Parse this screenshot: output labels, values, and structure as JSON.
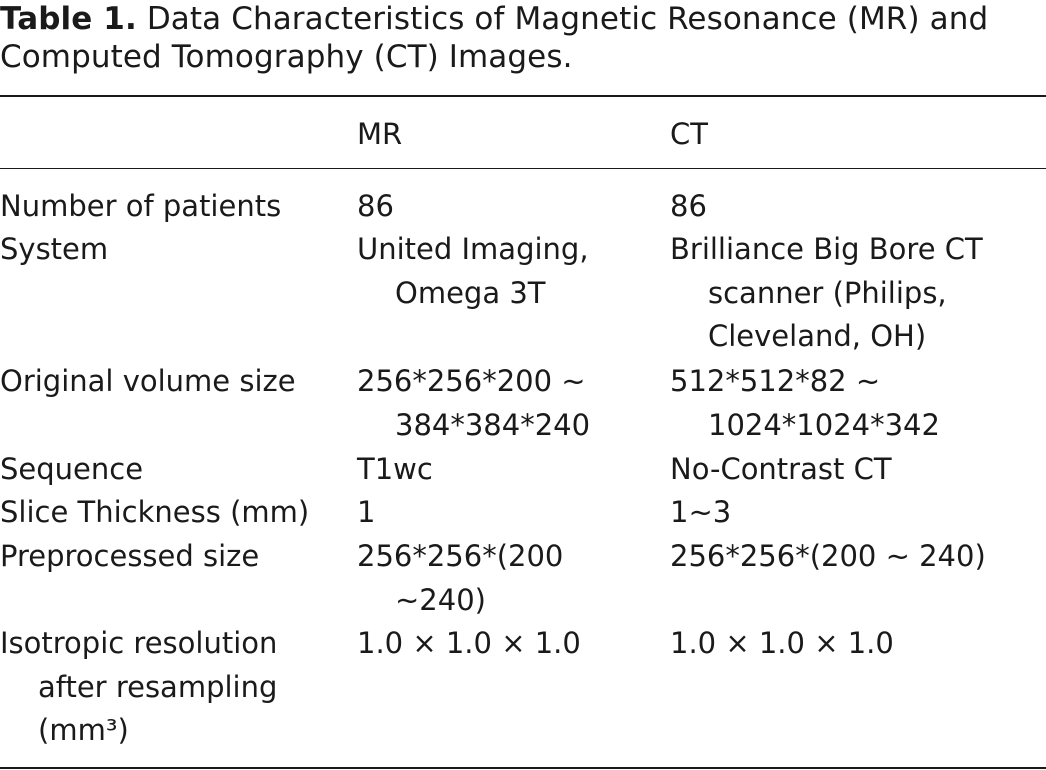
{
  "caption": {
    "label": "Table 1.",
    "text": "Data Characteristics of Magnetic Resonance (MR) and Computed Tomography (CT) Images."
  },
  "header": [
    "",
    "MR",
    "CT"
  ],
  "rows": [
    [
      "Number of patients",
      "86",
      "86"
    ],
    [
      "System",
      "United Imaging, Omega 3T",
      "Brilliance Big Bore CT scanner (Philips, Cleveland, OH)"
    ],
    [
      "Original volume size",
      "256*256*200 ∼ 384*384*240",
      "512*512*82 ∼ 1024*1024*342"
    ],
    [
      "Sequence",
      "T1wc",
      "No-Contrast CT"
    ],
    [
      "Slice Thickness (mm)",
      "1",
      "1∼3"
    ],
    [
      "Preprocessed size",
      "256*256*(200 ∼240)",
      "256*256*(200 ∼ 240)"
    ],
    [
      "Isotropic resolution after resampling (mm³)",
      "1.0 × 1.0 × 1.0",
      "1.0 × 1.0 × 1.0"
    ]
  ]
}
